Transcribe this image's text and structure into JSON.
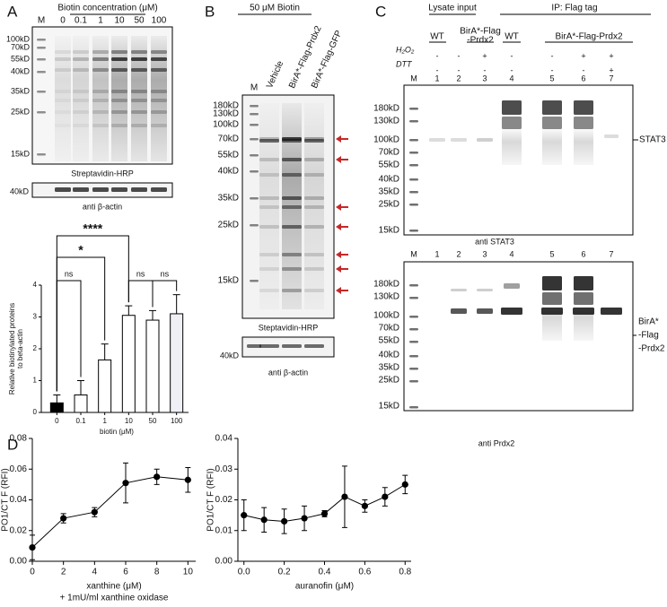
{
  "chart_data": [
    {
      "type": "bar",
      "categories": [
        "0",
        "0.1",
        "1",
        "10",
        "50",
        "100"
      ],
      "values": [
        0.3,
        0.55,
        1.65,
        3.05,
        2.9,
        3.1
      ],
      "errors": [
        0.25,
        0.45,
        0.5,
        0.3,
        0.3,
        0.6
      ],
      "colors": [
        "#000000",
        "#ffffff",
        "#ffffff",
        "#ffffff",
        "#ffffff",
        "#eef0f6"
      ],
      "ylim": [
        0,
        4
      ],
      "yticks": [
        0,
        1,
        2,
        3,
        4
      ],
      "y_label": [
        "Relative biotinylated proteins",
        "to beta-actin"
      ],
      "x_label": "biotin (μM)",
      "significance": [
        "ns",
        "*",
        "****",
        "ns",
        "ns"
      ]
    },
    {
      "type": "line",
      "x": [
        0,
        2,
        4,
        6,
        8,
        10
      ],
      "values": [
        0.009,
        0.028,
        0.032,
        0.051,
        0.055,
        0.053
      ],
      "errors": [
        0.008,
        0.003,
        0.003,
        0.013,
        0.005,
        0.008
      ],
      "color": "#000000",
      "xlim": [
        0,
        10.5
      ],
      "xticks": [
        0,
        2,
        4,
        6,
        8,
        10
      ],
      "ylim": [
        0,
        0.08
      ],
      "yticks": [
        {
          "value": 0,
          "label": "0.00"
        },
        {
          "value": 0.02,
          "label": "0.02"
        },
        {
          "value": 0.04,
          "label": "0.04"
        },
        {
          "value": 0.06,
          "label": "0.06"
        },
        {
          "value": 0.08,
          "label": "0.08"
        }
      ],
      "y_label": "PO1/CT F (RFI)",
      "x_label": "xanthine (μM)",
      "subtitle": "+ 1mU/ml xanthine oxidase"
    },
    {
      "type": "line",
      "x": [
        0,
        0.1,
        0.2,
        0.3,
        0.4,
        0.5,
        0.6,
        0.7,
        0.8
      ],
      "values": [
        0.015,
        0.0135,
        0.013,
        0.014,
        0.0155,
        0.021,
        0.018,
        0.021,
        0.025
      ],
      "errors": [
        0.005,
        0.004,
        0.004,
        0.004,
        0.001,
        0.01,
        0.002,
        0.003,
        0.003
      ],
      "color": "#000000",
      "xlim": [
        -0.03,
        0.83
      ],
      "xticks": [
        {
          "value": 0,
          "label": "0.0"
        },
        {
          "value": 0.2,
          "label": "0.2"
        },
        {
          "value": 0.4,
          "label": "0.4"
        },
        {
          "value": 0.6,
          "label": "0.6"
        },
        {
          "value": 0.8,
          "label": "0.8"
        }
      ],
      "ylim": [
        0,
        0.04
      ],
      "yticks": [
        {
          "value": 0,
          "label": "0.00"
        },
        {
          "value": 0.01,
          "label": "0.01"
        },
        {
          "value": 0.02,
          "label": "0.02"
        },
        {
          "value": 0.03,
          "label": "0.03"
        },
        {
          "value": 0.04,
          "label": "0.04"
        }
      ],
      "y_label": "PO1/CT F (RFI)",
      "x_label": "auranofin (μM)"
    }
  ],
  "blots": {
    "A": {
      "label": "A",
      "header": "Biotin concentration (μM)",
      "lanes": [
        "M",
        "0",
        "0.1",
        "1",
        "10",
        "50",
        "100"
      ],
      "markers": [
        "100kD",
        "70kD",
        "55kD",
        "40kD",
        "35kD",
        "25kD",
        "15kD"
      ],
      "caption": "Streptavidin-HRP",
      "loading_marker": "40kD",
      "loading_caption": "anti β-actin"
    },
    "B": {
      "label": "B",
      "header": "50 μM Biotin",
      "lanes": [
        "M",
        "Vehicle",
        "BirA*-Flag-Prdx2",
        "BirA*-Flag-GFP"
      ],
      "markers": [
        "180kD",
        "130kD",
        "100kD",
        "70kD",
        "55kD",
        "40kD",
        "35kD",
        "25kD",
        "15kD"
      ],
      "caption": "Steptavidin-HRP",
      "loading_marker": "40kD",
      "loading_caption": "anti β-actin"
    },
    "C": {
      "label": "C",
      "groups": [
        "Lysate input",
        "IP: Flag tag"
      ],
      "genotypes": [
        "WT",
        "BirA*-Flag",
        "-Prdx2",
        "WT",
        "BirA*-Flag-Prdx2"
      ],
      "treatments": [
        {
          "name": "H₂O₂",
          "signs": [
            "-",
            "-",
            "+",
            "-",
            "-",
            "+",
            "+"
          ]
        },
        {
          "name": "DTT",
          "signs": [
            "-",
            "-",
            "-",
            "-",
            "-",
            "-",
            "+"
          ]
        }
      ],
      "top": {
        "lanes": [
          "M",
          "1",
          "2",
          "3",
          "4",
          "5",
          "6",
          "7"
        ],
        "markers": [
          "180kD",
          "130kD",
          "100kD",
          "70kD",
          "55kD",
          "40kD",
          "35kD",
          "25kD",
          "15kD"
        ],
        "target": [
          "STAT3"
        ],
        "caption": "anti STAT3"
      },
      "bottom": {
        "lanes": [
          "M",
          "1",
          "2",
          "3",
          "4",
          "5",
          "6",
          "7"
        ],
        "markers": [
          "180kD",
          "130kD",
          "100kD",
          "70kD",
          "55kD",
          "40kD",
          "35kD",
          "25kD",
          "15kD"
        ],
        "target": [
          "BirA*",
          "-Flag",
          "-Prdx2"
        ],
        "caption": "anti Prdx2"
      }
    },
    "D": {
      "label": "D"
    }
  }
}
